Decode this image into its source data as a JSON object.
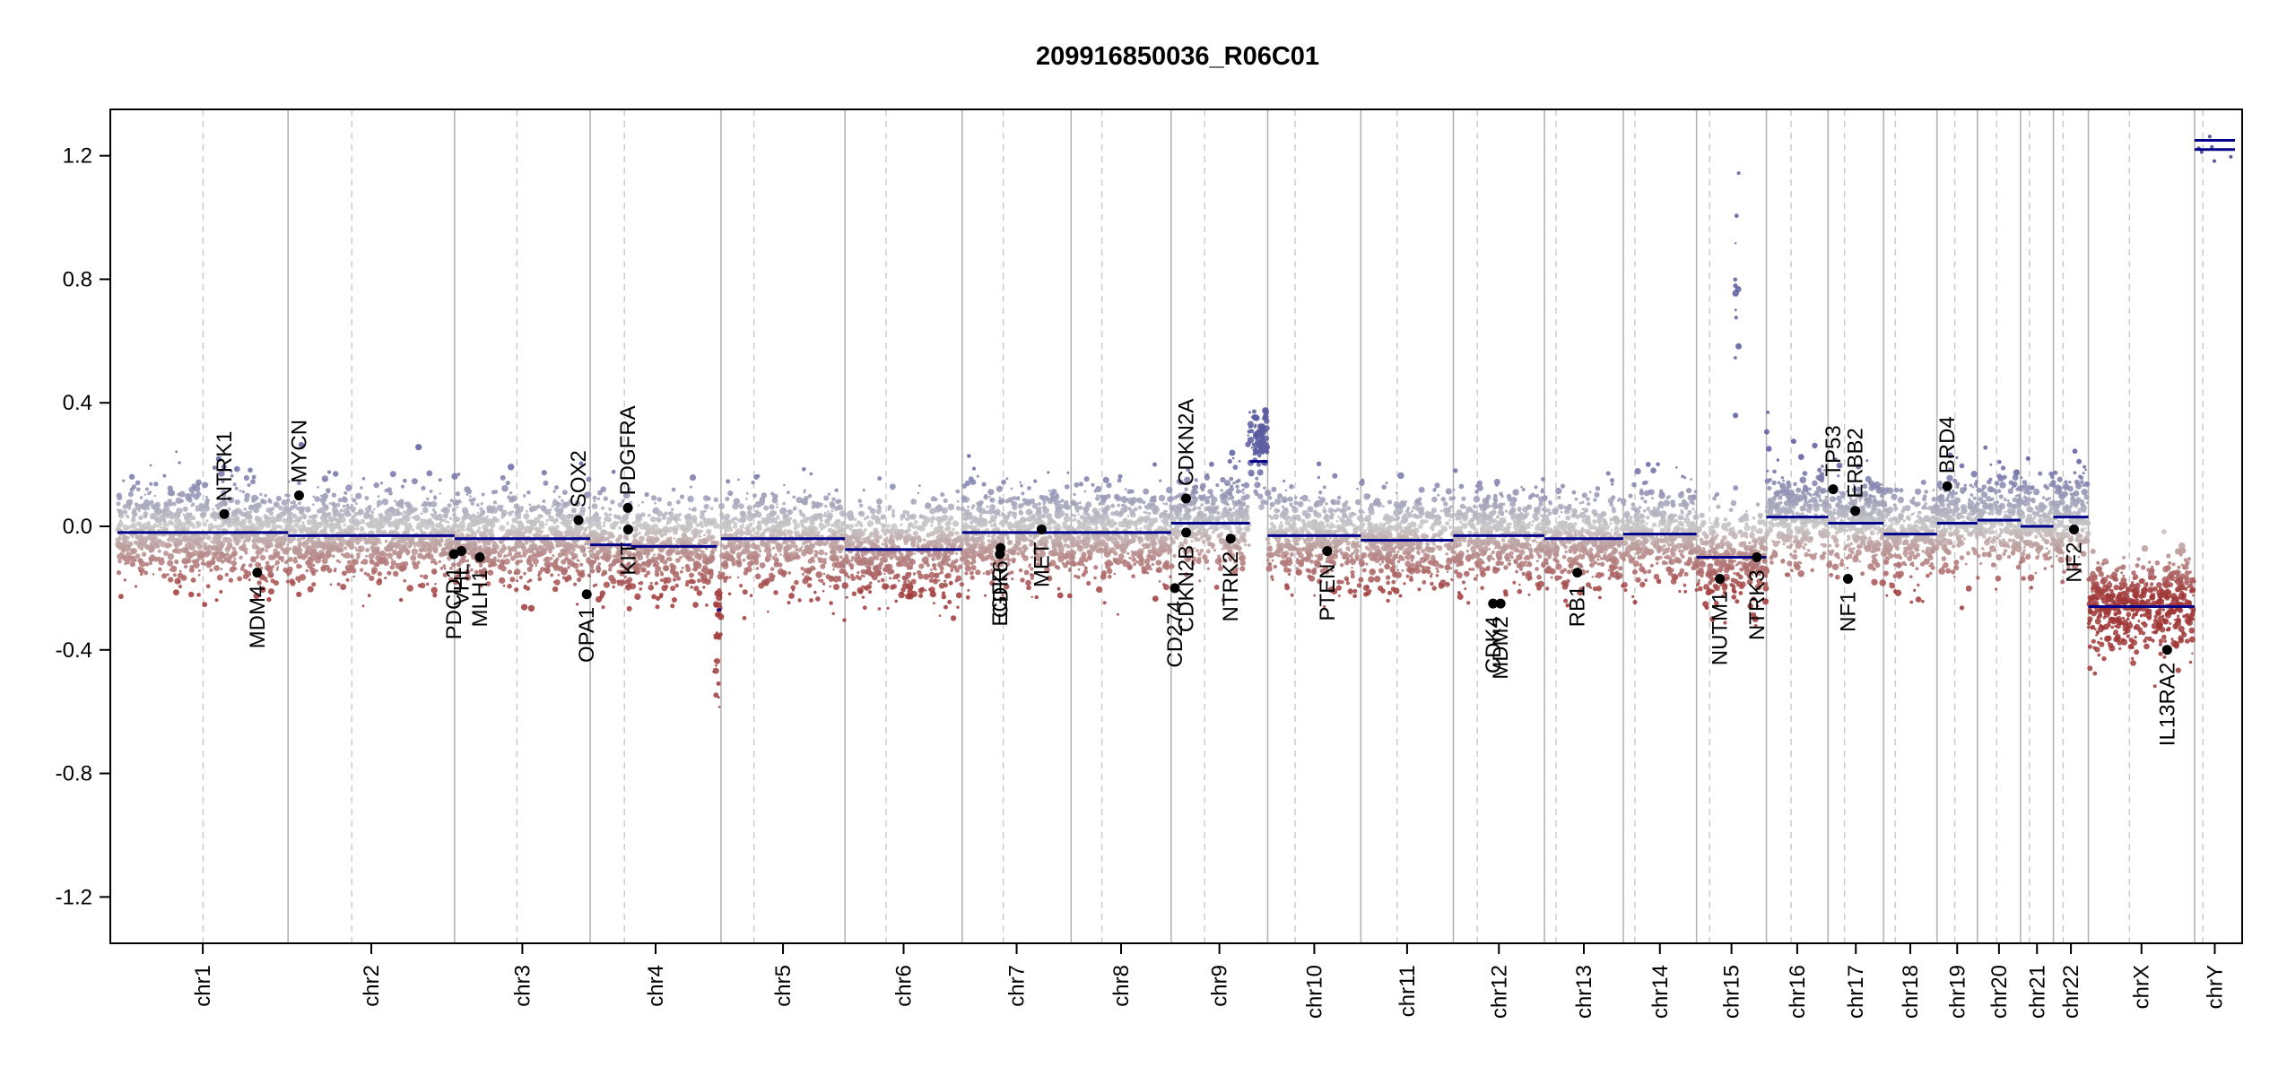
{
  "chart_data": {
    "type": "scatter",
    "title": "209916850036_R06C01",
    "xlabel": "",
    "ylabel": "",
    "ylim": [
      -1.35,
      1.35
    ],
    "yticks": [
      "1.2",
      "0.8",
      "0.4",
      "0.0",
      "-0.4",
      "-0.8",
      "-1.2"
    ],
    "grid": false,
    "legend": "none",
    "colors": {
      "gain": "#5a5aa0",
      "neutral": "#c8c8c8",
      "loss": "#a03c3c",
      "segment": "#00008b",
      "gene_dot": "#000000"
    },
    "chromosomes": [
      {
        "name": "chr1",
        "length": 249,
        "centromere": 125
      },
      {
        "name": "chr2",
        "length": 243,
        "centromere": 93
      },
      {
        "name": "chr3",
        "length": 198,
        "centromere": 91
      },
      {
        "name": "chr4",
        "length": 191,
        "centromere": 50
      },
      {
        "name": "chr5",
        "length": 181,
        "centromere": 48
      },
      {
        "name": "chr6",
        "length": 171,
        "centromere": 60
      },
      {
        "name": "chr7",
        "length": 159,
        "centromere": 60
      },
      {
        "name": "chr8",
        "length": 146,
        "centromere": 45
      },
      {
        "name": "chr9",
        "length": 141,
        "centromere": 49
      },
      {
        "name": "chr10",
        "length": 136,
        "centromere": 40
      },
      {
        "name": "chr11",
        "length": 135,
        "centromere": 53
      },
      {
        "name": "chr12",
        "length": 133,
        "centromere": 35
      },
      {
        "name": "chr13",
        "length": 115,
        "centromere": 17
      },
      {
        "name": "chr14",
        "length": 107,
        "centromere": 17
      },
      {
        "name": "chr15",
        "length": 102,
        "centromere": 19
      },
      {
        "name": "chr16",
        "length": 90,
        "centromere": 36
      },
      {
        "name": "chr17",
        "length": 81,
        "centromere": 24
      },
      {
        "name": "chr18",
        "length": 78,
        "centromere": 17
      },
      {
        "name": "chr19",
        "length": 59,
        "centromere": 26
      },
      {
        "name": "chr20",
        "length": 63,
        "centromere": 28
      },
      {
        "name": "chr21",
        "length": 48,
        "centromere": 13
      },
      {
        "name": "chr22",
        "length": 51,
        "centromere": 14
      },
      {
        "name": "chrX",
        "length": 155,
        "centromere": 60
      },
      {
        "name": "chrY",
        "length": 59,
        "centromere": 12
      }
    ],
    "segments": [
      {
        "chrom": "chr1",
        "start": 0,
        "end": 249,
        "value": -0.02
      },
      {
        "chrom": "chr2",
        "start": 0,
        "end": 243,
        "value": -0.03
      },
      {
        "chrom": "chr3",
        "start": 0,
        "end": 198,
        "value": -0.04
      },
      {
        "chrom": "chr4",
        "start": 0,
        "end": 60,
        "value": -0.06
      },
      {
        "chrom": "chr4",
        "start": 60,
        "end": 185,
        "value": -0.065
      },
      {
        "chrom": "chr4",
        "start": 185,
        "end": 191,
        "value": -0.27
      },
      {
        "chrom": "chr5",
        "start": 0,
        "end": 181,
        "value": -0.04
      },
      {
        "chrom": "chr6",
        "start": 0,
        "end": 171,
        "value": -0.075
      },
      {
        "chrom": "chr7",
        "start": 0,
        "end": 159,
        "value": -0.02
      },
      {
        "chrom": "chr8",
        "start": 0,
        "end": 146,
        "value": -0.02
      },
      {
        "chrom": "chr9",
        "start": 0,
        "end": 115,
        "value": 0.01
      },
      {
        "chrom": "chr9",
        "start": 115,
        "end": 141,
        "value": 0.21
      },
      {
        "chrom": "chr10",
        "start": 0,
        "end": 136,
        "value": -0.03
      },
      {
        "chrom": "chr11",
        "start": 0,
        "end": 135,
        "value": -0.045
      },
      {
        "chrom": "chr12",
        "start": 0,
        "end": 133,
        "value": -0.03
      },
      {
        "chrom": "chr13",
        "start": 0,
        "end": 115,
        "value": -0.04
      },
      {
        "chrom": "chr14",
        "start": 0,
        "end": 107,
        "value": -0.025
      },
      {
        "chrom": "chr15",
        "start": 0,
        "end": 102,
        "value": -0.1
      },
      {
        "chrom": "chr16",
        "start": 0,
        "end": 90,
        "value": 0.03
      },
      {
        "chrom": "chr17",
        "start": 0,
        "end": 81,
        "value": 0.01
      },
      {
        "chrom": "chr18",
        "start": 0,
        "end": 78,
        "value": -0.025
      },
      {
        "chrom": "chr19",
        "start": 0,
        "end": 59,
        "value": 0.01
      },
      {
        "chrom": "chr20",
        "start": 0,
        "end": 63,
        "value": 0.02
      },
      {
        "chrom": "chr21",
        "start": 0,
        "end": 48,
        "value": 0.0
      },
      {
        "chrom": "chr22",
        "start": 0,
        "end": 51,
        "value": 0.03
      },
      {
        "chrom": "chrX",
        "start": 0,
        "end": 155,
        "value": -0.26
      },
      {
        "chrom": "chrY",
        "start": 0,
        "end": 59,
        "value": 1.22
      },
      {
        "chrom": "chrY",
        "start": 0,
        "end": 59,
        "value": 1.25
      }
    ],
    "genes": [
      {
        "name": "NTRK1",
        "chrom": "chr1",
        "pos": 156,
        "value": 0.04,
        "side": "above"
      },
      {
        "name": "MDM4",
        "chrom": "chr1",
        "pos": 204,
        "value": -0.15,
        "side": "below"
      },
      {
        "name": "MYCN",
        "chrom": "chr2",
        "pos": 16,
        "value": 0.1,
        "side": "above"
      },
      {
        "name": "PDCD1",
        "chrom": "chr2",
        "pos": 242,
        "value": -0.09,
        "side": "below"
      },
      {
        "name": "VHL",
        "chrom": "chr3",
        "pos": 10,
        "value": -0.08,
        "side": "below"
      },
      {
        "name": "MLH1",
        "chrom": "chr3",
        "pos": 37,
        "value": -0.1,
        "side": "below"
      },
      {
        "name": "SOX2",
        "chrom": "chr3",
        "pos": 181,
        "value": 0.02,
        "side": "above"
      },
      {
        "name": "OPA1",
        "chrom": "chr3",
        "pos": 193,
        "value": -0.22,
        "side": "below"
      },
      {
        "name": "PDGFRA",
        "chrom": "chr4",
        "pos": 55,
        "value": 0.06,
        "side": "above"
      },
      {
        "name": "KIT",
        "chrom": "chr4",
        "pos": 55.5,
        "value": -0.01,
        "side": "below"
      },
      {
        "name": "EGFR",
        "chrom": "chr7",
        "pos": 55,
        "value": -0.09,
        "side": "below"
      },
      {
        "name": "CDK6",
        "chrom": "chr7",
        "pos": 56,
        "value": -0.07,
        "side": "below"
      },
      {
        "name": "MET",
        "chrom": "chr7",
        "pos": 116,
        "value": -0.01,
        "side": "below"
      },
      {
        "name": "CD274",
        "chrom": "chr9",
        "pos": 5.5,
        "value": -0.2,
        "side": "below"
      },
      {
        "name": "CDKN2A",
        "chrom": "chr9",
        "pos": 21.9,
        "value": 0.09,
        "side": "above"
      },
      {
        "name": "CDKN2B",
        "chrom": "chr9",
        "pos": 22,
        "value": -0.02,
        "side": "below"
      },
      {
        "name": "NTRK2",
        "chrom": "chr9",
        "pos": 87,
        "value": -0.04,
        "side": "below"
      },
      {
        "name": "PTEN",
        "chrom": "chr10",
        "pos": 87,
        "value": -0.08,
        "side": "below"
      },
      {
        "name": "CDK4",
        "chrom": "chr12",
        "pos": 58,
        "value": -0.25,
        "side": "below"
      },
      {
        "name": "MDM2",
        "chrom": "chr12",
        "pos": 69,
        "value": -0.25,
        "side": "below"
      },
      {
        "name": "RB1",
        "chrom": "chr13",
        "pos": 48,
        "value": -0.15,
        "side": "below"
      },
      {
        "name": "NUTM1",
        "chrom": "chr15",
        "pos": 34,
        "value": -0.17,
        "side": "below"
      },
      {
        "name": "NTRK3",
        "chrom": "chr15",
        "pos": 88,
        "value": -0.1,
        "side": "below"
      },
      {
        "name": "TP53",
        "chrom": "chr17",
        "pos": 7.5,
        "value": 0.12,
        "side": "above"
      },
      {
        "name": "NF1",
        "chrom": "chr17",
        "pos": 29,
        "value": -0.17,
        "side": "below"
      },
      {
        "name": "ERBB2",
        "chrom": "chr17",
        "pos": 39.7,
        "value": 0.05,
        "side": "above"
      },
      {
        "name": "BRD4",
        "chrom": "chr19",
        "pos": 15,
        "value": 0.13,
        "side": "above"
      },
      {
        "name": "NF2",
        "chrom": "chr22",
        "pos": 30,
        "value": -0.01,
        "side": "below"
      },
      {
        "name": "IL13RA2",
        "chrom": "chrX",
        "pos": 115,
        "value": -0.4,
        "side": "below"
      }
    ],
    "noise": {
      "sd": 0.075,
      "probes_per_mb": 3.5,
      "hotspots": [
        {
          "chrom": "chr9",
          "start": 112,
          "end": 141,
          "value": 0.29,
          "sd": 0.06
        },
        {
          "chrom": "chr15",
          "start": 56,
          "end": 62,
          "value": 0.7,
          "sd": 0.35
        },
        {
          "chrom": "chr16",
          "start": 0,
          "end": 4,
          "value": 0.3,
          "sd": 0.15
        },
        {
          "chrom": "chr4",
          "start": 180,
          "end": 191,
          "value": -0.35,
          "sd": 0.12
        }
      ]
    }
  }
}
